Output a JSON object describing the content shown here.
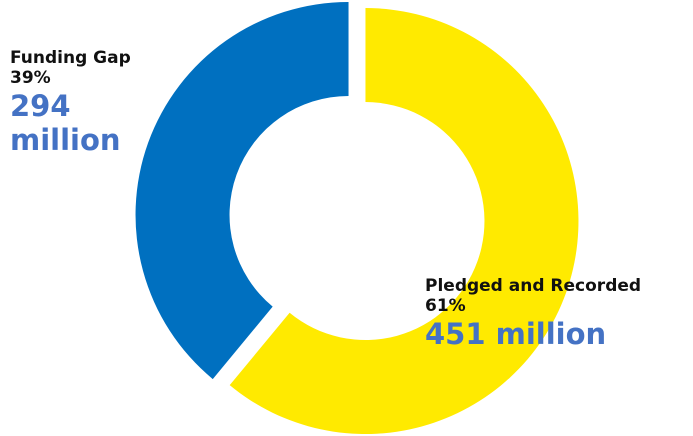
{
  "chart_data": {
    "type": "pie",
    "variant": "donut",
    "categories": [
      "Pledged and Recorded",
      "Funding Gap"
    ],
    "values": [
      61,
      39
    ],
    "value_unit": "%",
    "amounts": [
      "451 million",
      "294 million"
    ],
    "colors": [
      "#ffea00",
      "#0070c0"
    ],
    "exploded": true,
    "legend": "none",
    "title": ""
  },
  "labels": {
    "gap": {
      "name": "Funding Gap",
      "percent": "39%",
      "amount": "294 million"
    },
    "pledged": {
      "name": "Pledged and Recorded",
      "percent": "61%",
      "amount": "451 million"
    }
  }
}
